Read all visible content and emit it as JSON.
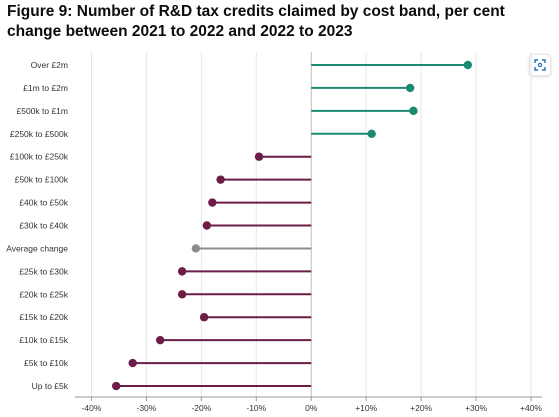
{
  "title": "Figure 9: Number of R&D tax credits claimed by cost band, per cent change between 2021 to 2022 and 2022 to 2023",
  "toolbar": {
    "fullscreen_icon": "expand-icon"
  },
  "chart_data": {
    "type": "lollipop",
    "orientation": "horizontal",
    "xlim": [
      -43,
      42
    ],
    "x_ticks": [
      -40,
      -30,
      -20,
      -10,
      0,
      10,
      20,
      30,
      40
    ],
    "x_tick_labels": [
      "-40%",
      "-30%",
      "-20%",
      "-10%",
      "0%",
      "+10%",
      "+20%",
      "+30%",
      "+40%"
    ],
    "grid": true,
    "colors": {
      "increase": "#1a8a72",
      "decrease": "#6b1d47",
      "average": "#8c8c8c"
    },
    "categories": [
      "Over £2m",
      "£1m to £2m",
      "£500k to £1m",
      "£250k to £500k",
      "£100k to £250k",
      "£50k to £100k",
      "£40k to £50k",
      "£30k to £40k",
      "Average change",
      "£25k to £30k",
      "£20k to £25k",
      "£15k to £20k",
      "£10k to £15k",
      "£5k to £10k",
      "Up to £5k"
    ],
    "values": [
      28.5,
      18,
      18.6,
      11,
      -9.5,
      -16.5,
      -18,
      -19,
      -21,
      -23.5,
      -23.5,
      -19.5,
      -27.5,
      -32.5,
      -35.5
    ],
    "kinds": [
      "increase",
      "increase",
      "increase",
      "increase",
      "decrease",
      "decrease",
      "decrease",
      "decrease",
      "average",
      "decrease",
      "decrease",
      "decrease",
      "decrease",
      "decrease",
      "decrease"
    ]
  }
}
